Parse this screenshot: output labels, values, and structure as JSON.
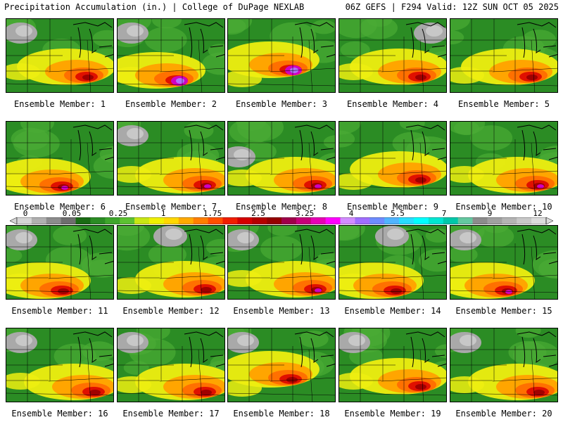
{
  "header": {
    "left": "Precipitation Accumulation (in.) | College of DuPage NEXLAB",
    "right": "06Z GEFS | F294 Valid: 12Z SUN OCT 05 2025"
  },
  "members": [
    {
      "label": "Ensemble Member: 1",
      "heavy": "east",
      "gray": "northwest"
    },
    {
      "label": "Ensemble Member: 2",
      "heavy": "south-central",
      "gray": "northwest"
    },
    {
      "label": "Ensemble Member: 3",
      "heavy": "central",
      "gray": "none"
    },
    {
      "label": "Ensemble Member: 4",
      "heavy": "east",
      "gray": "northeast"
    },
    {
      "label": "Ensemble Member: 5",
      "heavy": "east",
      "gray": "none"
    },
    {
      "label": "Ensemble Member: 6",
      "heavy": "south",
      "gray": "none"
    },
    {
      "label": "Ensemble Member: 7",
      "heavy": "southeast",
      "gray": "northwest"
    },
    {
      "label": "Ensemble Member: 8",
      "heavy": "southeast",
      "gray": "west"
    },
    {
      "label": "Ensemble Member: 9",
      "heavy": "east",
      "gray": "none"
    },
    {
      "label": "Ensemble Member: 10",
      "heavy": "southeast",
      "gray": "none"
    },
    {
      "label": "Ensemble Member: 11",
      "heavy": "south",
      "gray": "northwest"
    },
    {
      "label": "Ensemble Member: 12",
      "heavy": "southeast",
      "gray": "north"
    },
    {
      "label": "Ensemble Member: 13",
      "heavy": "southeast",
      "gray": "northwest"
    },
    {
      "label": "Ensemble Member: 14",
      "heavy": "south",
      "gray": "north"
    },
    {
      "label": "Ensemble Member: 15",
      "heavy": "south",
      "gray": "northwest"
    },
    {
      "label": "Ensemble Member: 16",
      "heavy": "southeast",
      "gray": "northwest"
    },
    {
      "label": "Ensemble Member: 17",
      "heavy": "southeast",
      "gray": "northwest"
    },
    {
      "label": "Ensemble Member: 18",
      "heavy": "central",
      "gray": "northwest"
    },
    {
      "label": "Ensemble Member: 19",
      "heavy": "east",
      "gray": "northwest"
    },
    {
      "label": "Ensemble Member: 20",
      "heavy": "southeast",
      "gray": "northwest"
    }
  ],
  "colorbar": {
    "labels": [
      "0",
      "0.05",
      "0.25",
      "1",
      "1.75",
      "2.5",
      "3.25",
      "4",
      "5.5",
      "7",
      "9",
      "12"
    ],
    "colors": [
      "#d4d4d4",
      "#b0b0b0",
      "#8c8c8c",
      "#6e6e6e",
      "#1a6b14",
      "#2b8c24",
      "#3ea62c",
      "#5cc132",
      "#c8e614",
      "#f0f000",
      "#ffd700",
      "#ffaa00",
      "#ff7f00",
      "#ff5000",
      "#f01e00",
      "#d40000",
      "#b40000",
      "#960000",
      "#a0004a",
      "#c8007a",
      "#e600b4",
      "#ff00ff",
      "#d28cff",
      "#a06eff",
      "#6e8cff",
      "#50b4ff",
      "#28dcff",
      "#00ffff",
      "#00e6d2",
      "#00c8aa",
      "#64c8a0",
      "#8c8c8c",
      "#a0a0a0",
      "#b4b4b4",
      "#c8c8c8",
      "#dcdcdc"
    ]
  },
  "palette": {
    "gray": "#a9a9a9",
    "lightgray": "#c8c8c8",
    "green": "#2b8c24",
    "lightgreen": "#4aab34",
    "yellow": "#eeee10",
    "orange": "#ffa500",
    "darkorange": "#ff7000",
    "red": "#e01000",
    "darkred": "#a00000",
    "magenta": "#d000c0",
    "violet": "#b070ff"
  }
}
